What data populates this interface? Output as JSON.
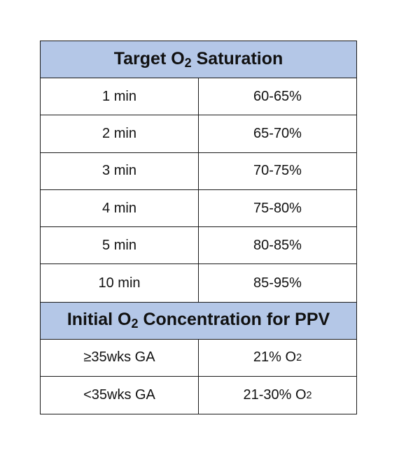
{
  "saturation_table": {
    "title": "Target O₂ Saturation",
    "rows": [
      {
        "time": "1 min",
        "target": "60-65%"
      },
      {
        "time": "2 min",
        "target": "65-70%"
      },
      {
        "time": "3 min",
        "target": "70-75%"
      },
      {
        "time": "4 min",
        "target": "75-80%"
      },
      {
        "time": "5 min",
        "target": "80-85%"
      },
      {
        "time": "10 min",
        "target": "85-95%"
      }
    ]
  },
  "concentration_table": {
    "title": "Initial O₂ Concentration for PPV",
    "rows": [
      {
        "age": "≥35wks GA",
        "concentration": "21% O₂"
      },
      {
        "age": "<35wks GA",
        "concentration": "21-30% O₂"
      }
    ]
  },
  "colors": {
    "header_background": "#b4c7e7",
    "border": "#1a1a1a"
  }
}
